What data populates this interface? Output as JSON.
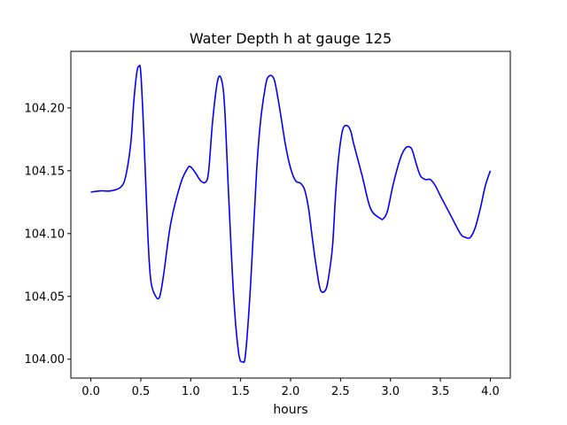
{
  "chart_data": {
    "type": "line",
    "title": "Water Depth h at gauge 125",
    "xlabel": "hours",
    "ylabel": "",
    "xlim": [
      -0.2,
      4.2
    ],
    "ylim": [
      103.985,
      104.245
    ],
    "xticks": [
      0.0,
      0.5,
      1.0,
      1.5,
      2.0,
      2.5,
      3.0,
      3.5,
      4.0
    ],
    "xtick_labels": [
      "0.0",
      "0.5",
      "1.0",
      "1.5",
      "2.0",
      "2.5",
      "3.0",
      "3.5",
      "4.0"
    ],
    "yticks": [
      104.0,
      104.05,
      104.1,
      104.15,
      104.2
    ],
    "ytick_labels": [
      "104.00",
      "104.05",
      "104.10",
      "104.15",
      "104.20"
    ],
    "grid": false,
    "series": [
      {
        "color": "#0000ff",
        "x": [
          0.0,
          0.1,
          0.2,
          0.3,
          0.35,
          0.4,
          0.43,
          0.46,
          0.48,
          0.5,
          0.53,
          0.57,
          0.6,
          0.65,
          0.69,
          0.73,
          0.8,
          0.9,
          0.97,
          1.0,
          1.05,
          1.1,
          1.15,
          1.18,
          1.22,
          1.27,
          1.31,
          1.34,
          1.38,
          1.43,
          1.48,
          1.52,
          1.55,
          1.6,
          1.66,
          1.7,
          1.75,
          1.78,
          1.82,
          1.85,
          1.9,
          1.95,
          2.0,
          2.05,
          2.1,
          2.14,
          2.18,
          2.22,
          2.26,
          2.3,
          2.35,
          2.38,
          2.42,
          2.45,
          2.48,
          2.52,
          2.56,
          2.6,
          2.63,
          2.67,
          2.72,
          2.8,
          2.9,
          2.93,
          2.97,
          3.03,
          3.1,
          3.15,
          3.19,
          3.22,
          3.26,
          3.3,
          3.35,
          3.4,
          3.45,
          3.5,
          3.6,
          3.7,
          3.75,
          3.8,
          3.85,
          3.9,
          3.95,
          4.0
        ],
        "values": [
          104.133,
          104.134,
          104.134,
          104.137,
          104.146,
          104.172,
          104.205,
          104.228,
          104.233,
          104.228,
          104.18,
          104.1,
          104.063,
          104.05,
          104.05,
          104.068,
          104.108,
          104.14,
          104.152,
          104.153,
          104.148,
          104.142,
          104.141,
          104.15,
          104.19,
          104.222,
          104.222,
          104.2,
          104.13,
          104.05,
          104.005,
          103.998,
          104.005,
          104.06,
          104.15,
          104.19,
          104.218,
          104.225,
          104.225,
          104.218,
          104.195,
          104.17,
          104.152,
          104.142,
          104.14,
          104.135,
          104.12,
          104.095,
          104.072,
          104.055,
          104.055,
          104.065,
          104.09,
          104.13,
          104.16,
          104.182,
          104.186,
          104.182,
          104.172,
          104.16,
          104.145,
          104.12,
          104.112,
          104.112,
          104.118,
          104.14,
          104.16,
          104.168,
          104.169,
          104.166,
          104.155,
          104.146,
          104.143,
          104.143,
          104.138,
          104.13,
          104.115,
          104.1,
          104.097,
          104.097,
          104.105,
          104.12,
          104.138,
          104.15
        ]
      }
    ]
  }
}
